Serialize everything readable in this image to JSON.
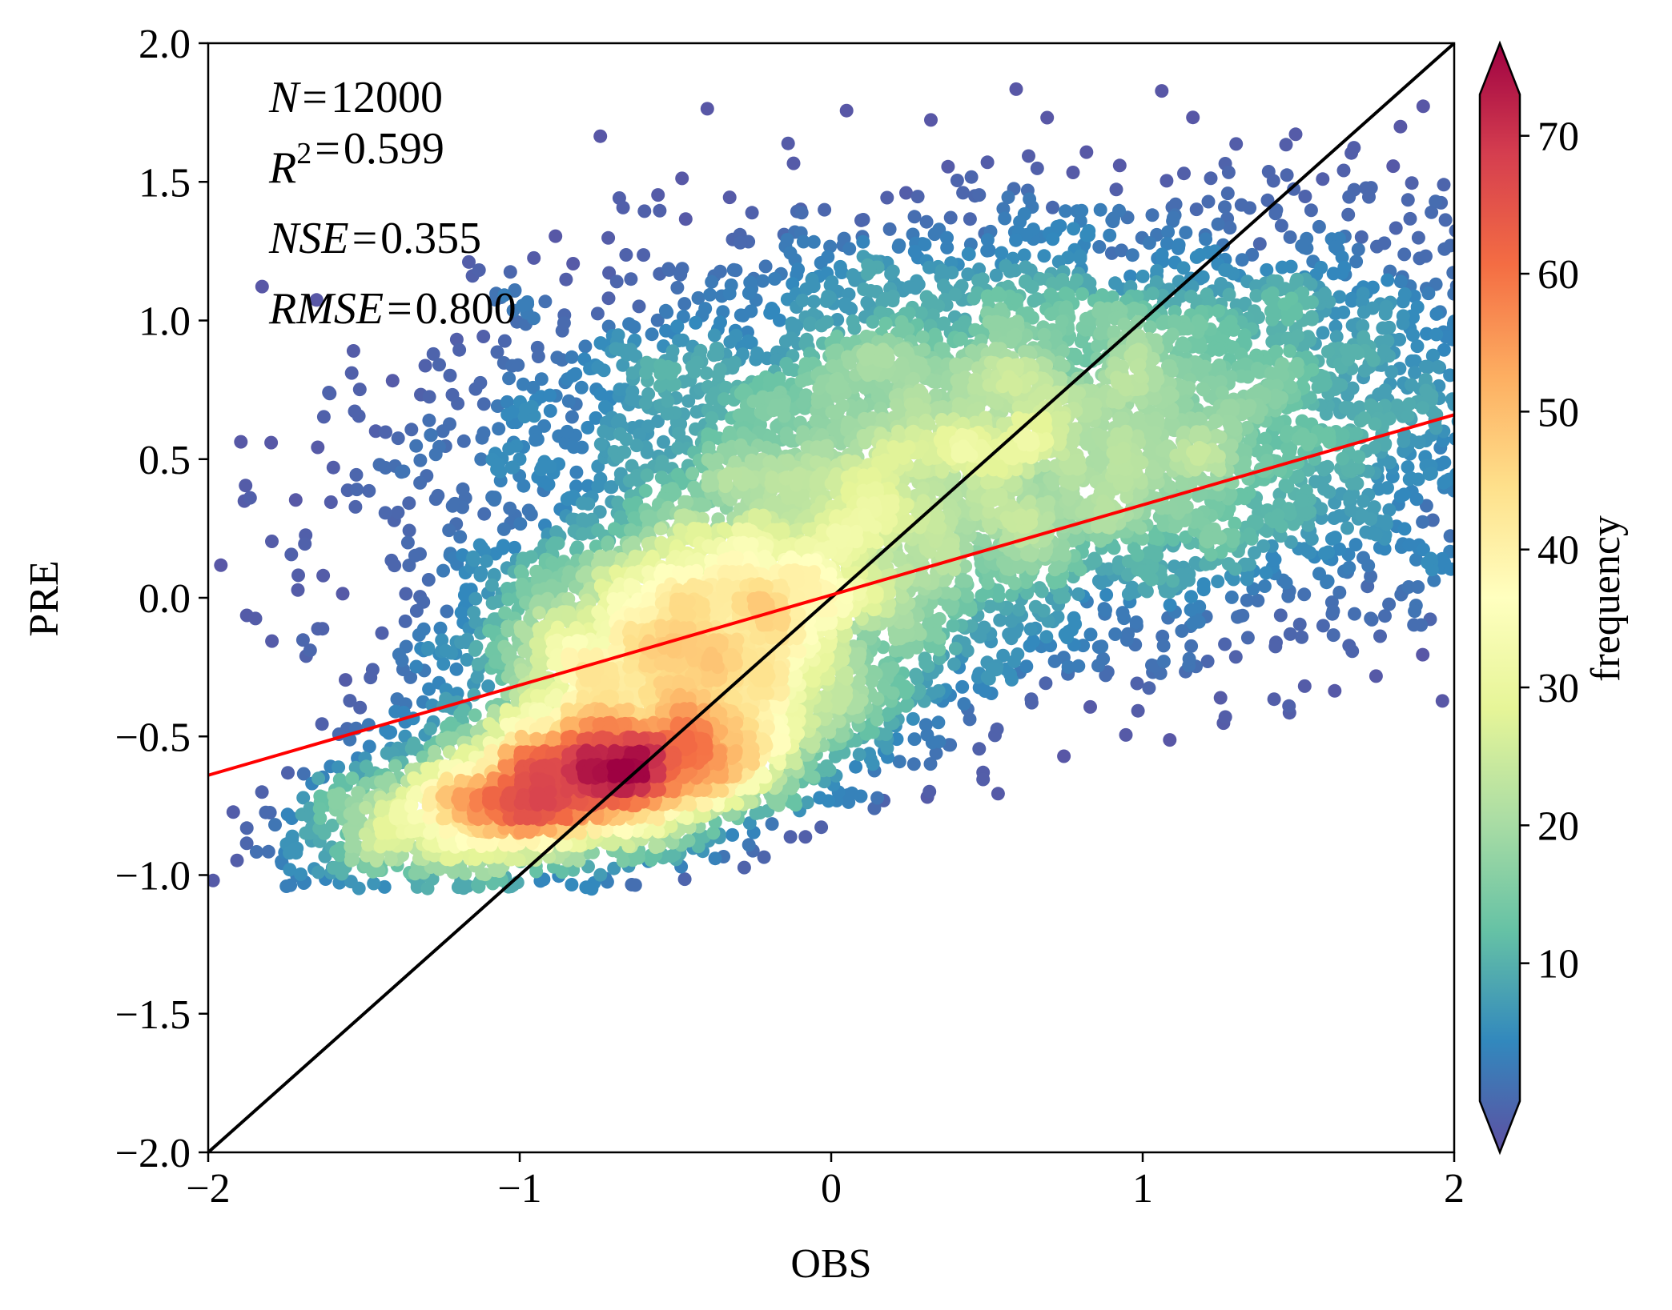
{
  "chart_data": {
    "type": "scatter",
    "title": "",
    "xlabel": "OBS",
    "ylabel": "PRE",
    "xlim": [
      -2,
      2
    ],
    "ylim": [
      -2,
      2
    ],
    "x_ticks": [
      -2,
      -1,
      0,
      1,
      2
    ],
    "x_tick_labels": [
      "−2",
      "−1",
      "0",
      "1",
      "2"
    ],
    "y_ticks": [
      -2.0,
      -1.5,
      -1.0,
      -0.5,
      0.0,
      0.5,
      1.0,
      1.5,
      2.0
    ],
    "y_tick_labels": [
      "−2.0",
      "−1.5",
      "−1.0",
      "−0.5",
      "0.0",
      "0.5",
      "1.0",
      "1.5",
      "2.0"
    ],
    "stats": [
      {
        "name": "N",
        "eq": "=",
        "value": "12000"
      },
      {
        "name": "R",
        "sup": "2",
        "eq": "=",
        "value": "0.599"
      },
      {
        "name": "NSE",
        "eq": "=",
        "value": "0.355"
      },
      {
        "name": "RMSE",
        "eq": "=",
        "value": "0.800"
      }
    ],
    "identity_line": {
      "x": [
        -2,
        2
      ],
      "y": [
        -2,
        2
      ],
      "color": "#000000"
    },
    "regression_line": {
      "x": [
        -2,
        2
      ],
      "y": [
        -0.64,
        0.66
      ],
      "color": "#ff0000"
    },
    "density_clusters": [
      {
        "cx": -0.78,
        "cy": -0.66,
        "sx": 0.42,
        "sy": 0.18,
        "rho": 0.55,
        "weight": 0.3
      },
      {
        "cx": -0.42,
        "cy": -0.12,
        "sx": 0.38,
        "sy": 0.22,
        "rho": 0.35,
        "weight": 0.22
      },
      {
        "cx": 0.55,
        "cy": 0.55,
        "sx": 0.85,
        "sy": 0.4,
        "rho": 0.2,
        "weight": 0.48
      }
    ],
    "n_points": 12000,
    "colorbar": {
      "label": "frequency",
      "vmin": 0,
      "vmax": 73,
      "ticks": [
        10,
        20,
        30,
        40,
        50,
        60,
        70
      ],
      "tick_labels": [
        "10",
        "20",
        "30",
        "40",
        "50",
        "60",
        "70"
      ],
      "colormap": "Spectral_r",
      "extend": "both",
      "stops": [
        "#5e4fa2",
        "#3288bd",
        "#66c2a5",
        "#abdda4",
        "#e6f598",
        "#ffffbf",
        "#fee08b",
        "#fdae61",
        "#f46d43",
        "#d53e4f",
        "#9e0142"
      ]
    }
  }
}
